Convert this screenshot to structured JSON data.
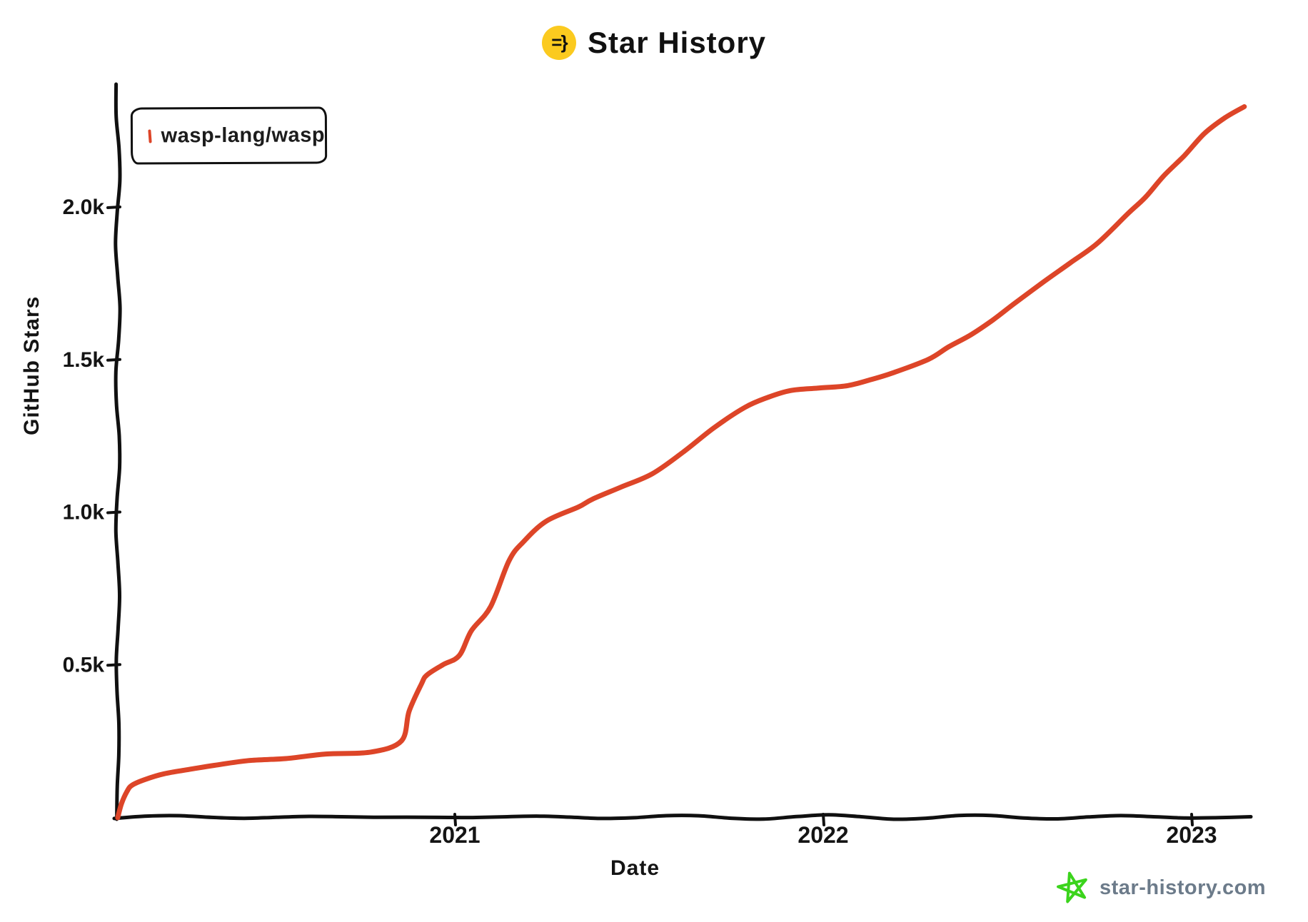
{
  "title": {
    "text": "Star History",
    "icon_glyph": "=}",
    "icon_bg_color": "#FBCA1F"
  },
  "legend": {
    "items": [
      {
        "label": "wasp-lang/wasp",
        "color": "#DD4528"
      }
    ]
  },
  "watermark": {
    "text": "star-history.com",
    "text_color": "#6C7B8A",
    "star_color": "#3BD41C",
    "star_icon": "green-star"
  },
  "chart_data": {
    "type": "line",
    "title": "Star History",
    "xlabel": "Date",
    "ylabel": "GitHub Stars",
    "grid": false,
    "legend_position": "top-left",
    "xlim": [
      2020.07,
      2023.17
    ],
    "ylim": [
      0,
      2400
    ],
    "x_ticks": [
      {
        "value": 2021,
        "label": "2021"
      },
      {
        "value": 2022,
        "label": "2022"
      },
      {
        "value": 2023,
        "label": "2023"
      }
    ],
    "y_ticks": [
      {
        "value": 500,
        "label": "0.5k"
      },
      {
        "value": 1000,
        "label": "1.0k"
      },
      {
        "value": 1500,
        "label": "1.5k"
      },
      {
        "value": 2000,
        "label": "2.0k"
      }
    ],
    "series": [
      {
        "name": "wasp-lang/wasp",
        "color": "#DD4528",
        "x_unit": "decimal_year",
        "y_unit": "stars",
        "points": [
          [
            2020.085,
            0
          ],
          [
            2020.095,
            45
          ],
          [
            2020.11,
            85
          ],
          [
            2020.124,
            105
          ],
          [
            2020.16,
            122
          ],
          [
            2020.211,
            140
          ],
          [
            2020.28,
            158
          ],
          [
            2020.347,
            171
          ],
          [
            2020.44,
            183
          ],
          [
            2020.541,
            194
          ],
          [
            2020.65,
            205
          ],
          [
            2020.773,
            215
          ],
          [
            2020.855,
            250
          ],
          [
            2020.876,
            346
          ],
          [
            2020.909,
            433
          ],
          [
            2020.924,
            463
          ],
          [
            2020.967,
            498
          ],
          [
            2021.012,
            531
          ],
          [
            2021.045,
            613
          ],
          [
            2021.097,
            690
          ],
          [
            2021.147,
            838
          ],
          [
            2021.186,
            900
          ],
          [
            2021.248,
            971
          ],
          [
            2021.335,
            1017
          ],
          [
            2021.374,
            1041
          ],
          [
            2021.45,
            1080
          ],
          [
            2021.535,
            1127
          ],
          [
            2021.62,
            1195
          ],
          [
            2021.703,
            1275
          ],
          [
            2021.787,
            1345
          ],
          [
            2021.85,
            1375
          ],
          [
            2021.911,
            1396
          ],
          [
            2021.988,
            1408
          ],
          [
            2022.066,
            1415
          ],
          [
            2022.13,
            1432
          ],
          [
            2022.188,
            1455
          ],
          [
            2022.285,
            1502
          ],
          [
            2022.34,
            1540
          ],
          [
            2022.401,
            1579
          ],
          [
            2022.46,
            1630
          ],
          [
            2022.517,
            1684
          ],
          [
            2022.595,
            1750
          ],
          [
            2022.67,
            1815
          ],
          [
            2022.744,
            1883
          ],
          [
            2022.827,
            1977
          ],
          [
            2022.875,
            2030
          ],
          [
            2022.924,
            2101
          ],
          [
            2022.98,
            2170
          ],
          [
            2023.034,
            2241
          ],
          [
            2023.09,
            2290
          ],
          [
            2023.143,
            2327
          ]
        ]
      }
    ]
  }
}
